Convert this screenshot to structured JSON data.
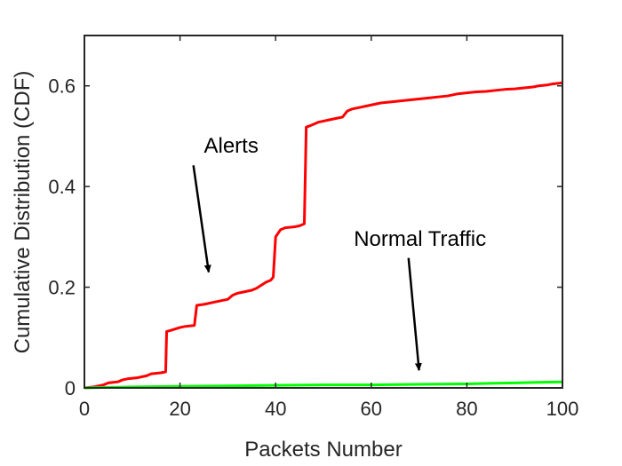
{
  "chart_data": {
    "type": "line",
    "title": "",
    "xlabel": "Packets Number",
    "ylabel": "Cumulative Distribution  (CDF)",
    "xlim": [
      0,
      100
    ],
    "ylim": [
      0,
      0.7
    ],
    "xticks": [
      0,
      20,
      40,
      60,
      80,
      100
    ],
    "yticks": [
      0,
      0.2,
      0.4,
      0.6
    ],
    "xtick_labels": [
      "0",
      "20",
      "40",
      "60",
      "80",
      "100"
    ],
    "ytick_labels": [
      "0",
      "0.2",
      "0.4",
      "0.6"
    ],
    "grid": false,
    "box": true,
    "series": [
      {
        "name": "Alerts",
        "color": "#ff0000",
        "x": [
          0,
          2,
          4,
          5,
          7,
          8,
          9,
          11,
          12,
          13,
          14,
          16,
          17,
          17.2,
          18,
          20,
          21,
          23,
          23.5,
          25,
          26,
          27,
          28,
          29,
          30,
          31,
          32,
          33,
          35,
          36,
          38,
          39,
          39.5,
          40,
          41,
          42,
          44,
          45,
          46,
          46.4,
          47,
          48,
          49,
          50,
          51,
          52,
          53,
          54,
          55,
          56,
          57,
          58,
          60,
          61,
          62,
          64,
          66,
          68,
          70,
          72,
          74,
          76,
          77,
          78,
          80,
          82,
          84,
          86,
          88,
          90,
          92,
          94,
          95,
          97,
          98,
          100
        ],
        "y": [
          0,
          0.002,
          0.006,
          0.01,
          0.012,
          0.016,
          0.018,
          0.02,
          0.022,
          0.024,
          0.028,
          0.03,
          0.032,
          0.112,
          0.114,
          0.12,
          0.122,
          0.124,
          0.164,
          0.166,
          0.168,
          0.17,
          0.172,
          0.174,
          0.176,
          0.184,
          0.188,
          0.19,
          0.194,
          0.198,
          0.21,
          0.214,
          0.22,
          0.3,
          0.314,
          0.318,
          0.32,
          0.322,
          0.326,
          0.518,
          0.52,
          0.524,
          0.528,
          0.53,
          0.532,
          0.534,
          0.536,
          0.538,
          0.55,
          0.554,
          0.556,
          0.558,
          0.562,
          0.564,
          0.566,
          0.568,
          0.57,
          0.572,
          0.574,
          0.576,
          0.578,
          0.58,
          0.582,
          0.584,
          0.586,
          0.588,
          0.589,
          0.591,
          0.593,
          0.594,
          0.596,
          0.598,
          0.6,
          0.602,
          0.604,
          0.606
        ]
      },
      {
        "name": "Normal Traffic",
        "color": "#00ff00",
        "x": [
          0,
          10,
          20,
          30,
          40,
          50,
          60,
          70,
          80,
          85,
          90,
          95,
          100
        ],
        "y": [
          0,
          0.002,
          0.003,
          0.004,
          0.005,
          0.006,
          0.006,
          0.007,
          0.008,
          0.009,
          0.01,
          0.011,
          0.012
        ]
      }
    ],
    "annotations": [
      {
        "text": "Alerts",
        "text_x": 30.7,
        "text_y": 0.467,
        "arrow_from": [
          22.8,
          0.442
        ],
        "arrow_to": [
          26,
          0.23
        ]
      },
      {
        "text": "Normal Traffic",
        "text_x": 70.2,
        "text_y": 0.282,
        "arrow_from": [
          67.8,
          0.258
        ],
        "arrow_to": [
          70,
          0.035
        ]
      }
    ]
  }
}
